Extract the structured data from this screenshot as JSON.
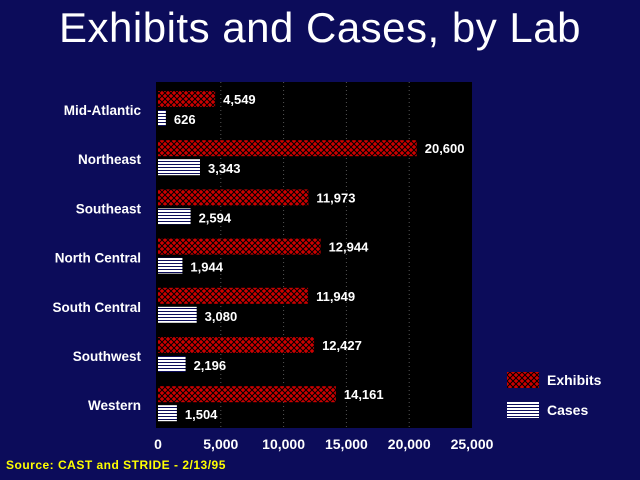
{
  "chart_data": {
    "type": "bar",
    "orientation": "horizontal",
    "title": "Exhibits and Cases, by Lab",
    "categories": [
      "Mid-Atlantic",
      "Northeast",
      "Southeast",
      "North Central",
      "South Central",
      "Southwest",
      "Western"
    ],
    "series": [
      {
        "name": "Exhibits",
        "values": [
          4549,
          20600,
          11973,
          12944,
          11949,
          12427,
          14161
        ],
        "labels": [
          "4,549",
          "20,600",
          "11,973",
          "12,944",
          "11,949",
          "12,427",
          "14,161"
        ]
      },
      {
        "name": "Cases",
        "values": [
          626,
          3343,
          2594,
          1944,
          3080,
          2196,
          1504
        ],
        "labels": [
          "626",
          "3,343",
          "2,594",
          "1,944",
          "3,080",
          "2,196",
          "1,504"
        ]
      }
    ],
    "xlim": [
      0,
      25000
    ],
    "xticks": [
      0,
      5000,
      10000,
      15000,
      20000,
      25000
    ],
    "xtick_labels": [
      "0",
      "5,000",
      "10,000",
      "15,000",
      "20,000",
      "25,000"
    ],
    "grid": "vertical dotted",
    "legend_position": "right",
    "colors": {
      "background": "#0c0c5a",
      "plot_area": "#000000",
      "exhibits": "#cc0000",
      "cases": "#ffffff",
      "text": "#ffffff"
    }
  },
  "source": "Source:  CAST and STRIDE - 2/13/95"
}
